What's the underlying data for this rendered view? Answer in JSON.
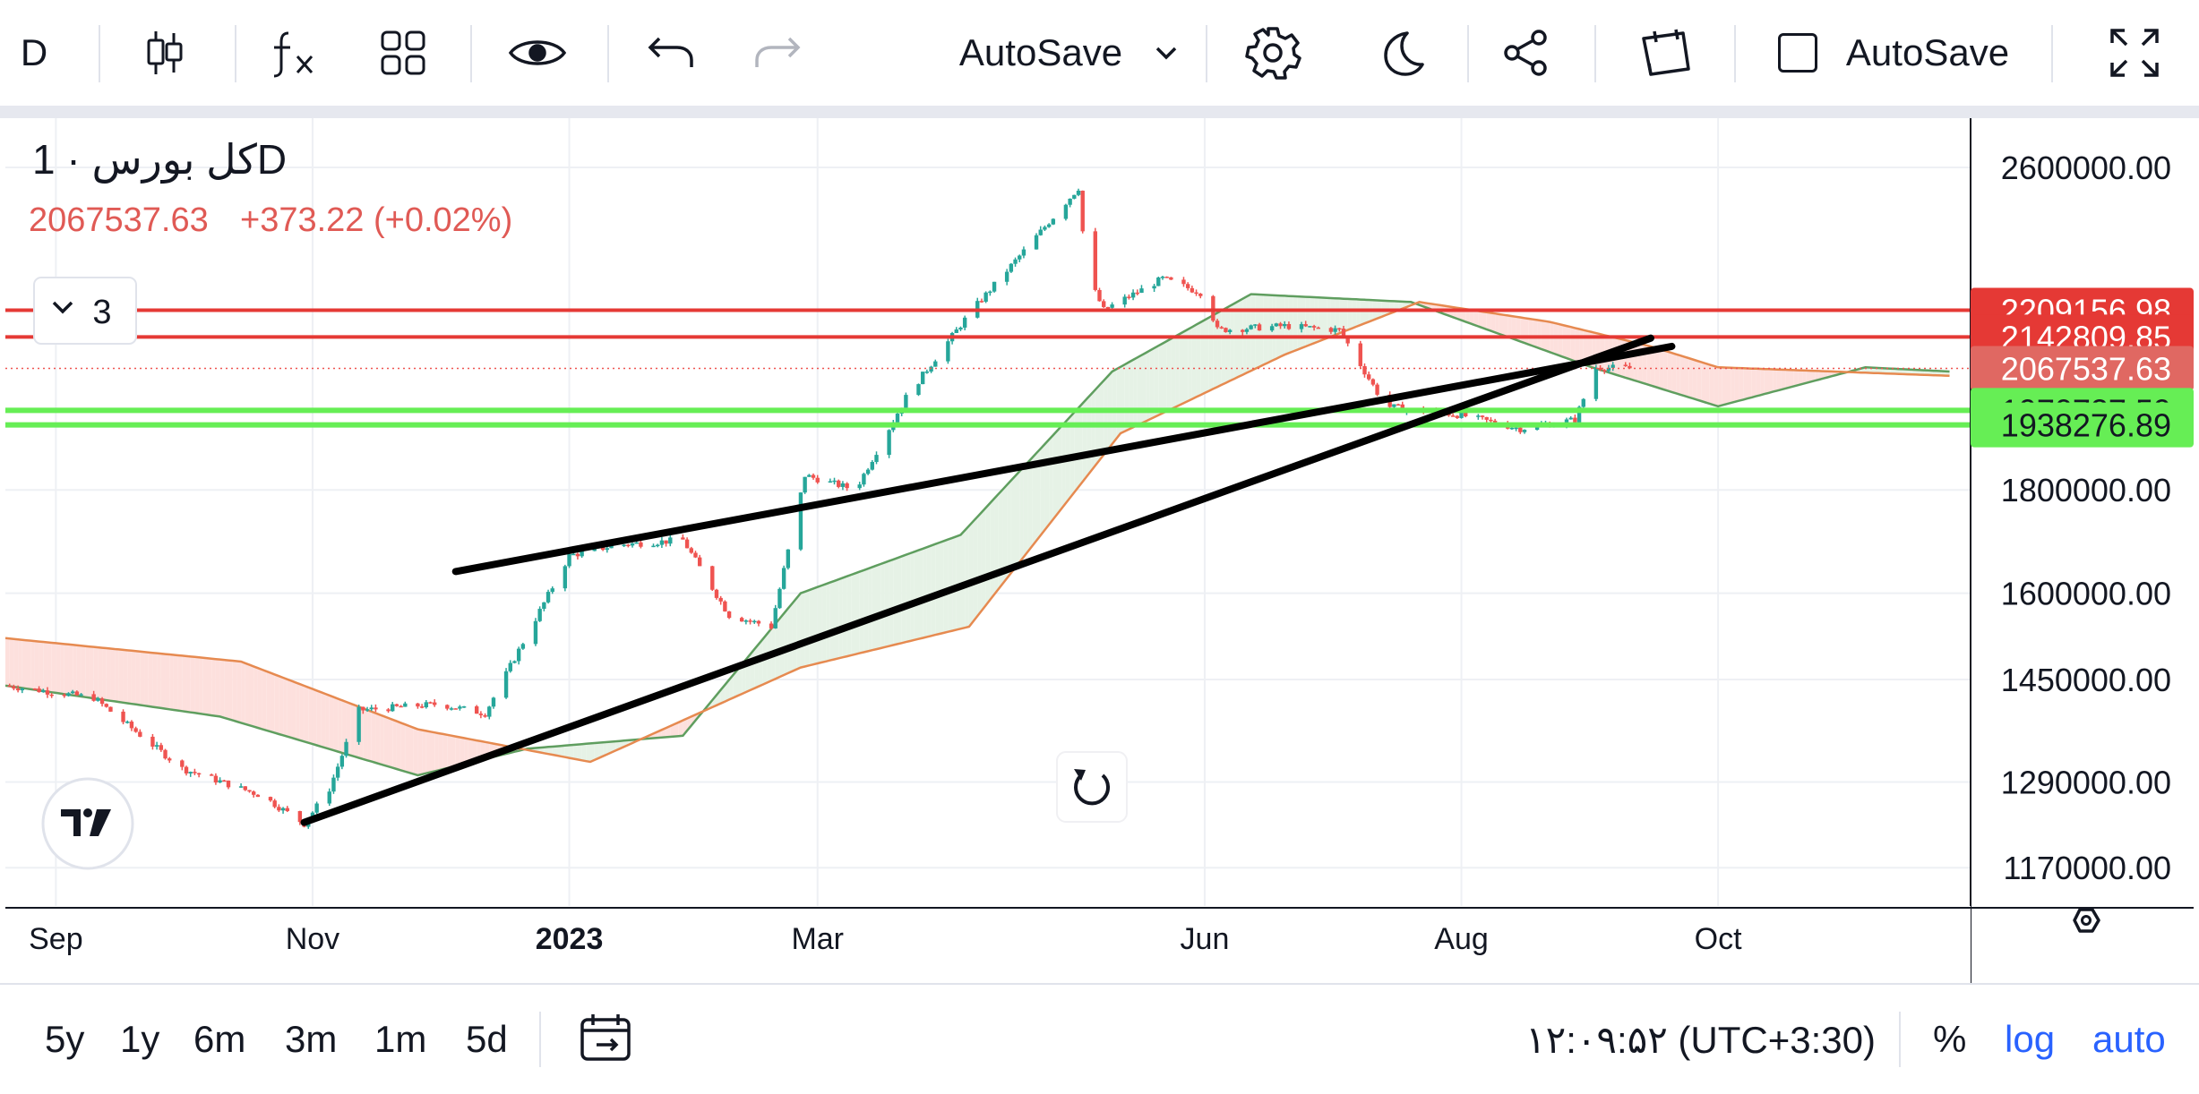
{
  "toolbar": {
    "interval": "D",
    "autosave_dropdown": "AutoSave",
    "autosave_checkbox": "AutoSave",
    "icons": [
      "candles-icon",
      "fx-indicators-icon",
      "layout-grid-icon",
      "eye-icon",
      "undo-icon",
      "redo-icon",
      "chevron-down-icon",
      "gear-icon",
      "moon-icon",
      "share-icon",
      "note-icon",
      "checkbox-icon",
      "fullscreen-icon"
    ]
  },
  "legend": {
    "title": "کل بورس · 1D",
    "last": "2067537.63",
    "change": "+373.22 (+0.02%)",
    "collapse_count": "3"
  },
  "colors": {
    "up": "#26a69a",
    "down": "#ef5350",
    "resistance": "#e53935",
    "support": "#66ee55",
    "trend": "#000000",
    "cloud_green": "#5f9e5f",
    "cloud_orange": "#e68a50",
    "cloud_fill_green": "#e6f2e6",
    "cloud_fill_red": "#fde0dd"
  },
  "price_axis": {
    "ticks": [
      "2600000.00",
      "1800000.00",
      "1600000.00",
      "1450000.00",
      "1290000.00",
      "1170000.00"
    ],
    "labels": [
      {
        "text": "2209156.98",
        "value": 2209156.98,
        "kind": "resistance"
      },
      {
        "text": "2142809.85",
        "value": 2142809.85,
        "kind": "resistance"
      },
      {
        "text": "2067537.63",
        "value": 2067537.63,
        "kind": "last"
      },
      {
        "text": "1970727.59",
        "value": 1970727.59,
        "kind": "support"
      },
      {
        "text": "1938276.89",
        "value": 1938276.89,
        "kind": "support"
      }
    ]
  },
  "time_axis": {
    "ticks": [
      {
        "label": "Sep",
        "date": "2022-09-01",
        "bold": false
      },
      {
        "label": "Nov",
        "date": "2022-11-01",
        "bold": false
      },
      {
        "label": "2023",
        "date": "2023-01-01",
        "bold": true
      },
      {
        "label": "Mar",
        "date": "2023-03-01",
        "bold": false
      },
      {
        "label": "Jun",
        "date": "2023-06-01",
        "bold": false
      },
      {
        "label": "Aug",
        "date": "2023-08-01",
        "bold": false
      },
      {
        "label": "Oct",
        "date": "2023-10-01",
        "bold": false
      }
    ],
    "settings_icon": "hexagon-settings-icon"
  },
  "bottom_bar": {
    "ranges": [
      "5y",
      "1y",
      "6m",
      "3m",
      "1m",
      "5d"
    ],
    "clock": "۱۲:۰۹:۵۲ (UTC+3:30)",
    "percent": "%",
    "log": "log",
    "auto": "auto",
    "date_range_icon": "calendar-range-icon"
  },
  "chart_data": {
    "type": "candlestick",
    "title": "کل بورس · 1D",
    "scale": "log",
    "ylim": [
      1120000,
      2750000
    ],
    "xlim": [
      "2022-08-20",
      "2023-11-30"
    ],
    "grid": true,
    "series_anchors": [
      {
        "date": "2022-08-20",
        "close": 1440000
      },
      {
        "date": "2022-09-10",
        "close": 1420000
      },
      {
        "date": "2022-10-01",
        "close": 1310000
      },
      {
        "date": "2022-10-20",
        "close": 1270000
      },
      {
        "date": "2022-10-30",
        "close": 1230000
      },
      {
        "date": "2022-11-05",
        "close": 1280000
      },
      {
        "date": "2022-11-12",
        "close": 1400000
      },
      {
        "date": "2022-12-01",
        "close": 1410000
      },
      {
        "date": "2022-12-12",
        "close": 1395000
      },
      {
        "date": "2023-01-01",
        "close": 1670000
      },
      {
        "date": "2023-01-12",
        "close": 1690000
      },
      {
        "date": "2023-01-28",
        "close": 1700000
      },
      {
        "date": "2023-02-08",
        "close": 1560000
      },
      {
        "date": "2023-02-18",
        "close": 1540000
      },
      {
        "date": "2023-02-26",
        "close": 1830000
      },
      {
        "date": "2023-03-10",
        "close": 1800000
      },
      {
        "date": "2023-03-22",
        "close": 2000000
      },
      {
        "date": "2023-04-06",
        "close": 2200000
      },
      {
        "date": "2023-04-18",
        "close": 2350000
      },
      {
        "date": "2023-05-02",
        "close": 2540000
      },
      {
        "date": "2023-05-04",
        "close": 2300000
      },
      {
        "date": "2023-05-08",
        "close": 2210000
      },
      {
        "date": "2023-05-22",
        "close": 2290000
      },
      {
        "date": "2023-06-01",
        "close": 2250000
      },
      {
        "date": "2023-06-04",
        "close": 2160000
      },
      {
        "date": "2023-06-20",
        "close": 2170000
      },
      {
        "date": "2023-07-03",
        "close": 2160000
      },
      {
        "date": "2023-07-14",
        "close": 1980000
      },
      {
        "date": "2023-08-01",
        "close": 1960000
      },
      {
        "date": "2023-08-15",
        "close": 1930000
      },
      {
        "date": "2023-08-28",
        "close": 1950000
      },
      {
        "date": "2023-09-02",
        "close": 2070000
      },
      {
        "date": "2023-09-10",
        "close": 2067537.63
      }
    ],
    "ichimoku_cloud_span_a_anchors": [
      {
        "date": "2022-08-20",
        "value": 1440000
      },
      {
        "date": "2022-10-10",
        "value": 1390000
      },
      {
        "date": "2022-11-26",
        "value": 1300000
      },
      {
        "date": "2022-12-22",
        "value": 1340000
      },
      {
        "date": "2023-01-28",
        "value": 1360000
      },
      {
        "date": "2023-02-25",
        "value": 1600000
      },
      {
        "date": "2023-04-04",
        "value": 1710000
      },
      {
        "date": "2023-05-10",
        "value": 2060000
      },
      {
        "date": "2023-06-12",
        "value": 2250000
      },
      {
        "date": "2023-07-20",
        "value": 2230000
      },
      {
        "date": "2023-09-01",
        "value": 2070000
      },
      {
        "date": "2023-10-01",
        "value": 1980000
      },
      {
        "date": "2023-11-05",
        "value": 2070000
      },
      {
        "date": "2023-11-25",
        "value": 2060000
      }
    ],
    "ichimoku_cloud_span_b_anchors": [
      {
        "date": "2022-08-20",
        "value": 1520000
      },
      {
        "date": "2022-10-15",
        "value": 1480000
      },
      {
        "date": "2022-11-26",
        "value": 1370000
      },
      {
        "date": "2023-01-06",
        "value": 1320000
      },
      {
        "date": "2023-02-25",
        "value": 1470000
      },
      {
        "date": "2023-04-06",
        "value": 1540000
      },
      {
        "date": "2023-05-12",
        "value": 1920000
      },
      {
        "date": "2023-06-20",
        "value": 2100000
      },
      {
        "date": "2023-07-22",
        "value": 2230000
      },
      {
        "date": "2023-08-22",
        "value": 2180000
      },
      {
        "date": "2023-09-15",
        "value": 2120000
      },
      {
        "date": "2023-10-01",
        "value": 2070000
      },
      {
        "date": "2023-11-25",
        "value": 2050000
      }
    ],
    "horizontal_lines": [
      2209156.98,
      2142809.85,
      1970727.59,
      1938276.89
    ],
    "last_price_line": 2067537.63,
    "trend_lines": [
      {
        "from": {
          "date": "2022-10-30",
          "value": 1232000
        },
        "to": {
          "date": "2023-09-15",
          "value": 2140000
        }
      },
      {
        "from": {
          "date": "2022-12-05",
          "value": 1640000
        },
        "to": {
          "date": "2023-09-20",
          "value": 2120000
        }
      }
    ]
  }
}
